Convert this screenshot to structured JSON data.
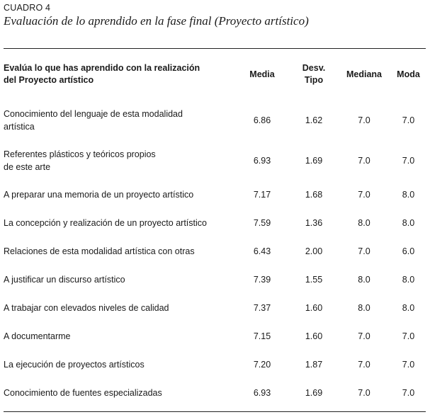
{
  "document": {
    "label": "CUADRO 4",
    "title": "Evaluación de lo aprendido en la fase final (Proyecto artístico)"
  },
  "table": {
    "headers": {
      "question_line1": "Evalúa lo que has aprendido con la realización",
      "question_line2": "del Proyecto artístico",
      "media": "Media",
      "desv_line1": "Desv.",
      "desv_line2": "Tipo",
      "mediana": "Mediana",
      "moda": "Moda"
    },
    "rows": [
      {
        "q1": "Conocimiento del lenguaje de esta modalidad",
        "q2": "artística",
        "media": "6.86",
        "desv": "1.62",
        "mediana": "7.0",
        "moda": "7.0"
      },
      {
        "q1": "Referentes plásticos y teóricos propios",
        "q2": "de este arte",
        "media": "6.93",
        "desv": "1.69",
        "mediana": "7.0",
        "moda": "7.0"
      },
      {
        "q1": "A preparar una memoria de un proyecto artístico",
        "q2": "",
        "media": "7.17",
        "desv": "1.68",
        "mediana": "7.0",
        "moda": "8.0"
      },
      {
        "q1": "La concepción y realización de un proyecto artístico",
        "q2": "",
        "media": "7.59",
        "desv": "1.36",
        "mediana": "8.0",
        "moda": "8.0"
      },
      {
        "q1": "Relaciones de esta modalidad artística con otras",
        "q2": "",
        "media": "6.43",
        "desv": "2.00",
        "mediana": "7.0",
        "moda": "6.0"
      },
      {
        "q1": "A justificar un discurso artístico",
        "q2": "",
        "media": "7.39",
        "desv": "1.55",
        "mediana": "8.0",
        "moda": "8.0"
      },
      {
        "q1": "A trabajar con elevados niveles de calidad",
        "q2": "",
        "media": "7.37",
        "desv": "1.60",
        "mediana": "8.0",
        "moda": "8.0"
      },
      {
        "q1": "A documentarme",
        "q2": "",
        "media": "7.15",
        "desv": "1.60",
        "mediana": "7.0",
        "moda": "7.0"
      },
      {
        "q1": "La ejecución de proyectos artísticos",
        "q2": "",
        "media": "7.20",
        "desv": "1.87",
        "mediana": "7.0",
        "moda": "7.0"
      },
      {
        "q1": "Conocimiento de fuentes especializadas",
        "q2": "",
        "media": "6.93",
        "desv": "1.69",
        "mediana": "7.0",
        "moda": "7.0"
      }
    ]
  }
}
